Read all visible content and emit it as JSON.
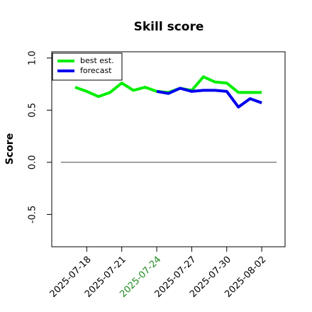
{
  "chart_data": {
    "type": "line",
    "title": "Skill score",
    "y_label": "Score",
    "x": [
      "2025-07-17",
      "2025-07-18",
      "2025-07-19",
      "2025-07-20",
      "2025-07-21",
      "2025-07-22",
      "2025-07-23",
      "2025-07-24",
      "2025-07-25",
      "2025-07-26",
      "2025-07-27",
      "2025-07-28",
      "2025-07-29",
      "2025-07-30",
      "2025-07-31",
      "2025-08-01",
      "2025-08-02"
    ],
    "series": [
      {
        "name": "best est.",
        "color": "#00ee00",
        "values": [
          0.72,
          0.68,
          0.63,
          0.67,
          0.76,
          0.69,
          0.72,
          0.68,
          0.67,
          0.71,
          0.69,
          0.82,
          0.77,
          0.76,
          0.67,
          0.67,
          0.67
        ]
      },
      {
        "name": "forecast",
        "color": "#0000ee",
        "values": [
          null,
          null,
          null,
          null,
          null,
          null,
          null,
          0.68,
          0.66,
          0.71,
          0.68,
          0.69,
          0.69,
          0.68,
          0.53,
          0.61,
          0.57
        ]
      }
    ],
    "xlim": [
      "2025-07-15",
      "2025-08-04"
    ],
    "xticks": [
      "2025-07-18",
      "2025-07-21",
      "2025-07-24",
      "2025-07-27",
      "2025-07-30",
      "2025-08-02"
    ],
    "xtick_colors": [
      "#000000",
      "#000000",
      "#228b22",
      "#000000",
      "#000000",
      "#000000"
    ],
    "ylim": [
      -0.81,
      1.06
    ],
    "yticks": [
      {
        "value": -0.5,
        "label": "-0.5"
      },
      {
        "value": 0,
        "label": "0.0"
      },
      {
        "value": 0.5,
        "label": "0.5"
      },
      {
        "value": 1,
        "label": "1.0"
      }
    ],
    "hline": 0,
    "hline_color": "#444444",
    "legend": "upper left"
  }
}
